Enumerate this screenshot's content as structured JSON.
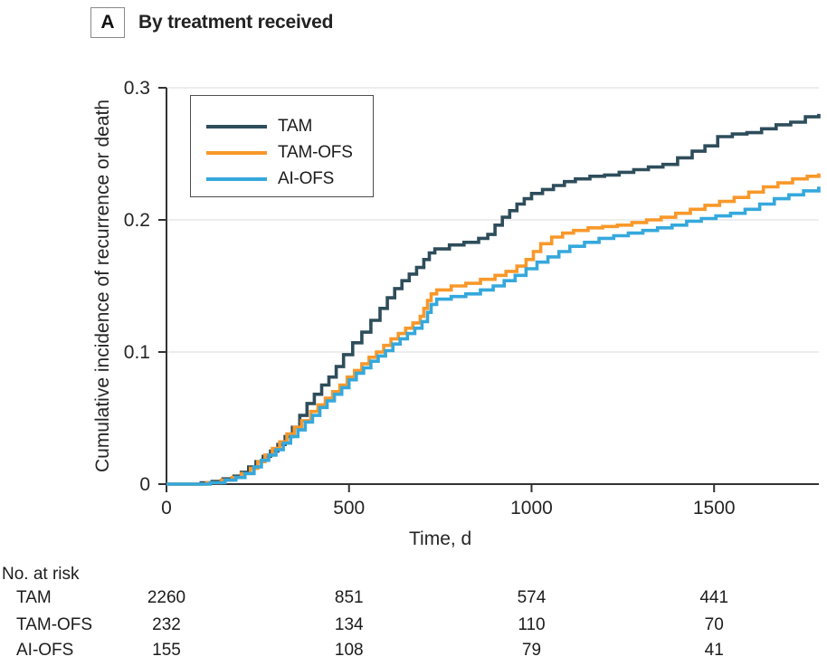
{
  "panel": {
    "label": "A",
    "title": "By treatment received"
  },
  "colors": {
    "tam": "#2e4d5b",
    "tam_ofs": "#f8982a",
    "ai_ofs": "#35a8dc",
    "axis": "#333333",
    "grid": "#e7e7e7",
    "text": "#252525"
  },
  "chart_data": {
    "type": "line",
    "subtype": "step-after-cumulative-incidence",
    "title": "By treatment received",
    "xlabel": "Time, d",
    "ylabel": "Cumulative incidence of recurrence or death",
    "xlim": [
      0,
      1787
    ],
    "ylim": [
      0,
      0.3
    ],
    "xticks": [
      0,
      500,
      1000,
      1500
    ],
    "yticks": [
      0,
      0.1,
      0.2,
      0.3
    ],
    "grid": "horizontal-light",
    "legend_position": "upper-left-inside",
    "series": [
      {
        "name": "TAM",
        "color": "#2e4d5b",
        "points": [
          [
            0,
            0
          ],
          [
            95,
            0.001
          ],
          [
            125,
            0.002
          ],
          [
            155,
            0.004
          ],
          [
            185,
            0.006
          ],
          [
            205,
            0.009
          ],
          [
            225,
            0.013
          ],
          [
            245,
            0.017
          ],
          [
            265,
            0.021
          ],
          [
            285,
            0.025
          ],
          [
            305,
            0.03
          ],
          [
            325,
            0.036
          ],
          [
            345,
            0.043
          ],
          [
            365,
            0.052
          ],
          [
            385,
            0.061
          ],
          [
            405,
            0.068
          ],
          [
            425,
            0.075
          ],
          [
            445,
            0.081
          ],
          [
            465,
            0.089
          ],
          [
            485,
            0.098
          ],
          [
            510,
            0.107
          ],
          [
            535,
            0.115
          ],
          [
            560,
            0.124
          ],
          [
            585,
            0.133
          ],
          [
            605,
            0.141
          ],
          [
            625,
            0.148
          ],
          [
            645,
            0.154
          ],
          [
            665,
            0.159
          ],
          [
            685,
            0.164
          ],
          [
            705,
            0.17
          ],
          [
            720,
            0.175
          ],
          [
            735,
            0.178
          ],
          [
            775,
            0.181
          ],
          [
            815,
            0.183
          ],
          [
            855,
            0.186
          ],
          [
            880,
            0.189
          ],
          [
            900,
            0.196
          ],
          [
            920,
            0.202
          ],
          [
            940,
            0.207
          ],
          [
            960,
            0.212
          ],
          [
            980,
            0.216
          ],
          [
            1000,
            0.22
          ],
          [
            1030,
            0.223
          ],
          [
            1060,
            0.226
          ],
          [
            1090,
            0.229
          ],
          [
            1120,
            0.231
          ],
          [
            1160,
            0.233
          ],
          [
            1200,
            0.234
          ],
          [
            1240,
            0.236
          ],
          [
            1280,
            0.238
          ],
          [
            1320,
            0.24
          ],
          [
            1360,
            0.242
          ],
          [
            1400,
            0.247
          ],
          [
            1440,
            0.252
          ],
          [
            1475,
            0.256
          ],
          [
            1510,
            0.263
          ],
          [
            1550,
            0.265
          ],
          [
            1590,
            0.266
          ],
          [
            1630,
            0.269
          ],
          [
            1670,
            0.272
          ],
          [
            1710,
            0.274
          ],
          [
            1750,
            0.278
          ],
          [
            1787,
            0.279
          ]
        ]
      },
      {
        "name": "TAM-OFS",
        "color": "#f8982a",
        "points": [
          [
            0,
            0
          ],
          [
            110,
            0.001
          ],
          [
            150,
            0.003
          ],
          [
            180,
            0.005
          ],
          [
            205,
            0.008
          ],
          [
            230,
            0.012
          ],
          [
            250,
            0.017
          ],
          [
            270,
            0.022
          ],
          [
            290,
            0.027
          ],
          [
            310,
            0.032
          ],
          [
            330,
            0.038
          ],
          [
            350,
            0.043
          ],
          [
            370,
            0.048
          ],
          [
            395,
            0.055
          ],
          [
            415,
            0.06
          ],
          [
            435,
            0.065
          ],
          [
            455,
            0.07
          ],
          [
            475,
            0.075
          ],
          [
            495,
            0.081
          ],
          [
            515,
            0.086
          ],
          [
            535,
            0.091
          ],
          [
            555,
            0.096
          ],
          [
            575,
            0.1
          ],
          [
            595,
            0.105
          ],
          [
            615,
            0.11
          ],
          [
            635,
            0.114
          ],
          [
            655,
            0.118
          ],
          [
            675,
            0.122
          ],
          [
            695,
            0.127
          ],
          [
            705,
            0.133
          ],
          [
            715,
            0.139
          ],
          [
            725,
            0.144
          ],
          [
            740,
            0.147
          ],
          [
            780,
            0.15
          ],
          [
            820,
            0.152
          ],
          [
            860,
            0.155
          ],
          [
            900,
            0.158
          ],
          [
            930,
            0.161
          ],
          [
            960,
            0.165
          ],
          [
            985,
            0.17
          ],
          [
            1005,
            0.176
          ],
          [
            1025,
            0.182
          ],
          [
            1055,
            0.187
          ],
          [
            1085,
            0.19
          ],
          [
            1115,
            0.192
          ],
          [
            1155,
            0.194
          ],
          [
            1195,
            0.195
          ],
          [
            1235,
            0.196
          ],
          [
            1275,
            0.198
          ],
          [
            1315,
            0.2
          ],
          [
            1355,
            0.202
          ],
          [
            1395,
            0.205
          ],
          [
            1435,
            0.208
          ],
          [
            1475,
            0.211
          ],
          [
            1515,
            0.214
          ],
          [
            1555,
            0.217
          ],
          [
            1595,
            0.221
          ],
          [
            1635,
            0.225
          ],
          [
            1675,
            0.228
          ],
          [
            1715,
            0.231
          ],
          [
            1755,
            0.233
          ],
          [
            1787,
            0.234
          ]
        ]
      },
      {
        "name": "AI-OFS",
        "color": "#35a8dc",
        "points": [
          [
            0,
            0
          ],
          [
            120,
            0.001
          ],
          [
            160,
            0.003
          ],
          [
            190,
            0.005
          ],
          [
            215,
            0.008
          ],
          [
            240,
            0.013
          ],
          [
            260,
            0.018
          ],
          [
            280,
            0.022
          ],
          [
            300,
            0.026
          ],
          [
            320,
            0.031
          ],
          [
            340,
            0.036
          ],
          [
            360,
            0.041
          ],
          [
            380,
            0.047
          ],
          [
            400,
            0.052
          ],
          [
            420,
            0.058
          ],
          [
            440,
            0.063
          ],
          [
            460,
            0.068
          ],
          [
            480,
            0.073
          ],
          [
            500,
            0.079
          ],
          [
            520,
            0.084
          ],
          [
            540,
            0.088
          ],
          [
            560,
            0.093
          ],
          [
            580,
            0.097
          ],
          [
            600,
            0.101
          ],
          [
            620,
            0.106
          ],
          [
            640,
            0.11
          ],
          [
            660,
            0.114
          ],
          [
            680,
            0.118
          ],
          [
            700,
            0.123
          ],
          [
            715,
            0.13
          ],
          [
            725,
            0.136
          ],
          [
            740,
            0.14
          ],
          [
            780,
            0.142
          ],
          [
            820,
            0.144
          ],
          [
            860,
            0.147
          ],
          [
            895,
            0.15
          ],
          [
            925,
            0.154
          ],
          [
            955,
            0.158
          ],
          [
            985,
            0.163
          ],
          [
            1015,
            0.168
          ],
          [
            1045,
            0.172
          ],
          [
            1075,
            0.176
          ],
          [
            1105,
            0.18
          ],
          [
            1145,
            0.183
          ],
          [
            1185,
            0.186
          ],
          [
            1225,
            0.188
          ],
          [
            1265,
            0.19
          ],
          [
            1305,
            0.192
          ],
          [
            1345,
            0.194
          ],
          [
            1385,
            0.196
          ],
          [
            1425,
            0.199
          ],
          [
            1465,
            0.201
          ],
          [
            1505,
            0.203
          ],
          [
            1545,
            0.205
          ],
          [
            1585,
            0.208
          ],
          [
            1625,
            0.212
          ],
          [
            1665,
            0.216
          ],
          [
            1705,
            0.219
          ],
          [
            1745,
            0.222
          ],
          [
            1787,
            0.224
          ]
        ]
      }
    ]
  },
  "risk_table": {
    "title": "No. at risk",
    "time_points": [
      0,
      500,
      1000,
      1500
    ],
    "rows": [
      {
        "label": "TAM",
        "values": [
          "2260",
          "851",
          "574",
          "441"
        ]
      },
      {
        "label": "TAM-OFS",
        "values": [
          "232",
          "134",
          "110",
          "70"
        ]
      },
      {
        "label": "AI-OFS",
        "values": [
          "155",
          "108",
          "79",
          "41"
        ]
      }
    ]
  }
}
